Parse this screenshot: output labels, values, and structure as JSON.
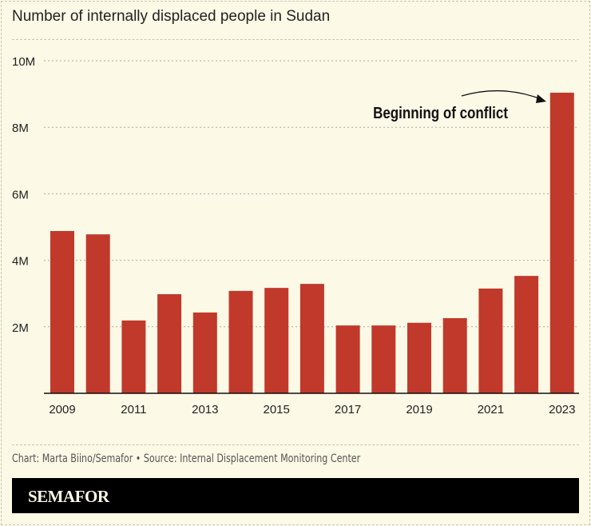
{
  "title": "Number of internally displaced people in Sudan",
  "credit": "Chart: Marta Biino/Semafor • Source: Internal Displacement Monitoring Center",
  "brand": "SEMAFOR",
  "chart_data": {
    "type": "bar",
    "title": "Number of internally displaced people in Sudan",
    "categories": [
      "2009",
      "2010",
      "2011",
      "2012",
      "2013",
      "2014",
      "2015",
      "2016",
      "2017",
      "2018",
      "2019",
      "2020",
      "2021",
      "2022",
      "2023"
    ],
    "values": [
      4.88,
      4.78,
      2.19,
      2.98,
      2.43,
      3.08,
      3.17,
      3.29,
      2.04,
      2.04,
      2.12,
      2.26,
      3.15,
      3.53,
      9.04
    ],
    "unit": "M",
    "ylim": [
      0,
      10
    ],
    "yticks": [
      {
        "v": 2,
        "label": "2M"
      },
      {
        "v": 4,
        "label": "4M"
      },
      {
        "v": 6,
        "label": "6M"
      },
      {
        "v": 8,
        "label": "8M"
      },
      {
        "v": 10,
        "label": "10M"
      }
    ],
    "xtick_labels": [
      "2009",
      "2011",
      "2013",
      "2015",
      "2017",
      "2019",
      "2021",
      "2023"
    ],
    "grid": true,
    "bar_color": "#c0392b",
    "annotation": {
      "text": "Beginning of conflict",
      "target": "2023"
    }
  }
}
